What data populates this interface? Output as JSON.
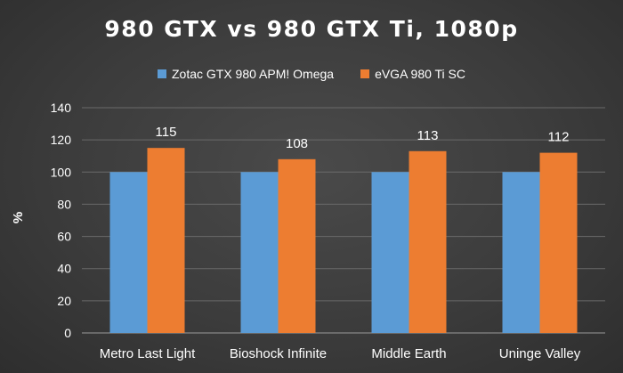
{
  "chart_data": {
    "type": "bar",
    "title": "980 GTX vs 980 GTX Ti, 1080p",
    "xlabel": "",
    "ylabel": "%",
    "categories": [
      "Metro Last Light",
      "Bioshock Infinite",
      "Middle Earth",
      "Uninge Valley"
    ],
    "series": [
      {
        "name": "Zotac GTX 980 APM! Omega",
        "values": [
          100,
          100,
          100,
          100
        ],
        "color": "#5b9bd5",
        "show_labels": false
      },
      {
        "name": "eVGA 980 Ti SC",
        "values": [
          115,
          108,
          113,
          112
        ],
        "color": "#ed7d31",
        "show_labels": true
      }
    ],
    "ylim": [
      0,
      140
    ],
    "yticks": [
      0,
      20,
      40,
      60,
      80,
      100,
      120,
      140
    ],
    "grid": true,
    "legend_position": "top"
  }
}
